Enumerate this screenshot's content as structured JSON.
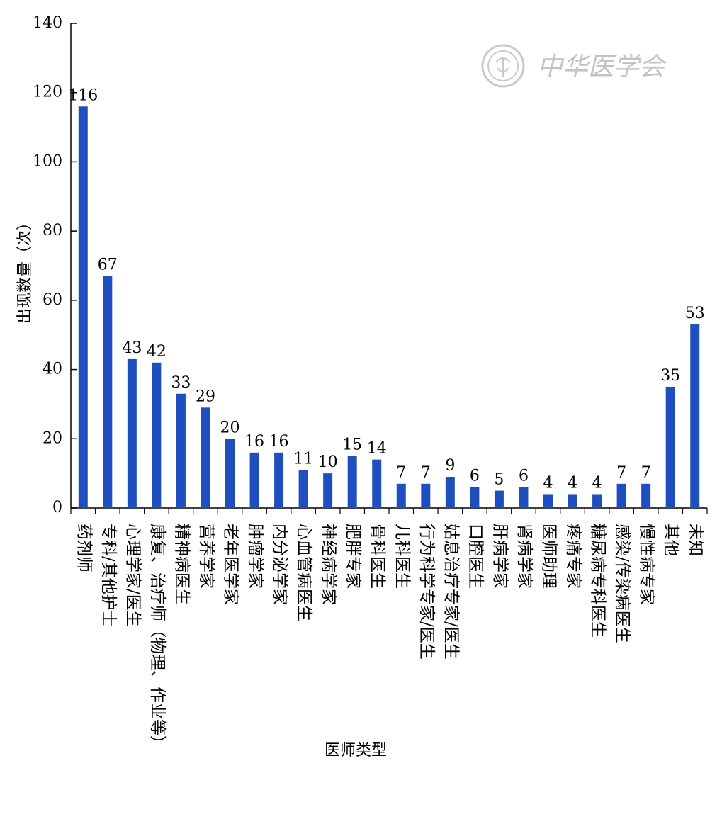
{
  "chart_data": {
    "type": "bar",
    "xlabel": "医师类型",
    "ylabel": "出现数量（次）",
    "ylim": [
      0,
      140
    ],
    "yticks": [
      0,
      20,
      40,
      60,
      80,
      100,
      120,
      140
    ],
    "grid": false,
    "bar_color": "#1f4fbf",
    "categories": [
      "药剂师",
      "专科/其他护士",
      "心理学家/医生",
      "康复、治疗师（物理、作业等）",
      "精神病医生",
      "营养学家",
      "老年医学家",
      "肿瘤学家",
      "内分泌学家",
      "心血管病医生",
      "神经病学家",
      "肥胖专家",
      "骨科医生",
      "儿科医生",
      "行为科学专家/医生",
      "姑息治疗专家/医生",
      "口腔医生",
      "肝病学家",
      "肾病学家",
      "医师助理",
      "疼痛专家",
      "糖尿病专科医生",
      "感染/传染病医生",
      "慢性病专家",
      "其他",
      "未知"
    ],
    "values": [
      116,
      67,
      43,
      42,
      33,
      29,
      20,
      16,
      16,
      11,
      10,
      15,
      14,
      7,
      7,
      9,
      6,
      5,
      6,
      4,
      4,
      4,
      7,
      7,
      35,
      53
    ]
  },
  "watermark": {
    "text": "中华医学会",
    "color": "#bdbdbd"
  }
}
